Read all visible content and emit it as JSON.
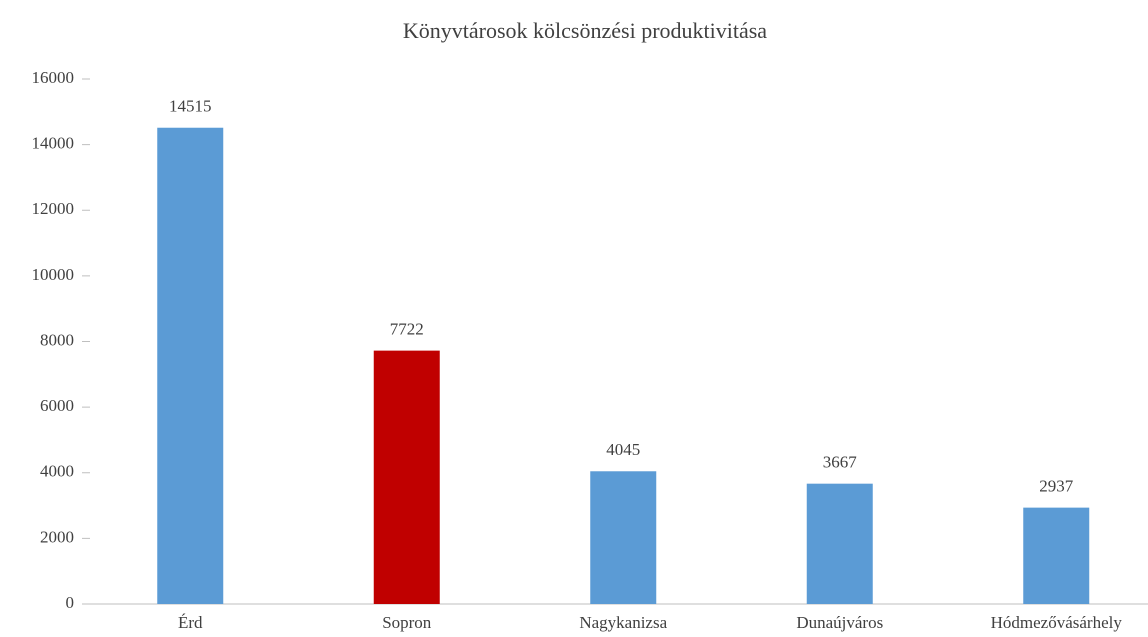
{
  "chart_data": {
    "type": "bar",
    "title": "Könyvtárosok kölcsönzési produktivitása",
    "categories": [
      "Érd",
      "Sopron",
      "Nagykanizsa",
      "Dunaújváros",
      "Hódmezővásárhely"
    ],
    "values": [
      14515,
      7722,
      4045,
      3667,
      2937
    ],
    "colors": [
      "#5b9bd5",
      "#c00000",
      "#5b9bd5",
      "#5b9bd5",
      "#5b9bd5"
    ],
    "ylim": [
      0,
      16000
    ],
    "yticks": [
      0,
      2000,
      4000,
      6000,
      8000,
      10000,
      12000,
      14000,
      16000
    ],
    "grid": false
  }
}
